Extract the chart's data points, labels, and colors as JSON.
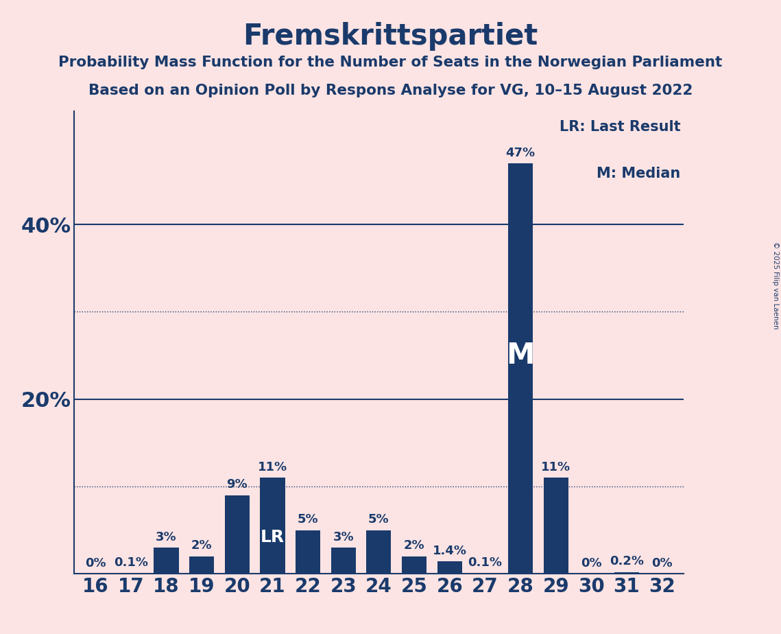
{
  "title": "Fremskrittspartiet",
  "subtitle1": "Probability Mass Function for the Number of Seats in the Norwegian Parliament",
  "subtitle2": "Based on an Opinion Poll by Respons Analyse for VG, 10–15 August 2022",
  "copyright": "© 2025 Filip van Laenen",
  "seats": [
    16,
    17,
    18,
    19,
    20,
    21,
    22,
    23,
    24,
    25,
    26,
    27,
    28,
    29,
    30,
    31,
    32
  ],
  "values": [
    0.0,
    0.1,
    3.0,
    2.0,
    9.0,
    11.0,
    5.0,
    3.0,
    5.0,
    2.0,
    1.4,
    0.1,
    47.0,
    11.0,
    0.0,
    0.2,
    0.0
  ],
  "labels": [
    "0%",
    "0.1%",
    "3%",
    "2%",
    "9%",
    "11%",
    "5%",
    "3%",
    "5%",
    "2%",
    "1.4%",
    "0.1%",
    "47%",
    "11%",
    "0%",
    "0.2%",
    "0%"
  ],
  "bar_color": "#1a3a6b",
  "background_color": "#fce4e4",
  "text_color": "#1a3a6b",
  "last_result_seat": 21,
  "median_seat": 28,
  "lr_label": "LR: Last Result",
  "m_label": "M: Median",
  "solid_lines": [
    20,
    40
  ],
  "dotted_lines": [
    10,
    30
  ],
  "ylim": [
    0,
    53
  ]
}
